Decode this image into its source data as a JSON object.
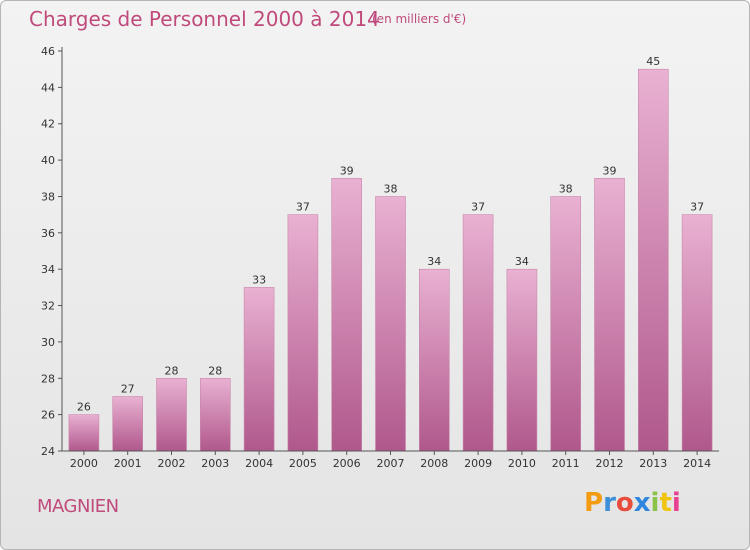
{
  "header": {
    "title": "Charges de Personnel 2000 à 2014",
    "subtitle": "(en milliers d'€)"
  },
  "footer": {
    "commune": "MAGNIEN",
    "brand": "Proxiti",
    "brand_letters": [
      "P",
      "r",
      "o",
      "x",
      "i",
      "t",
      "i"
    ],
    "brand_colors": [
      "#f39c12",
      "#3d8fd8",
      "#e74c3c",
      "#2e86de",
      "#8bc34a",
      "#f1c40f",
      "#e84393"
    ]
  },
  "colors": {
    "bar_light": "#e9b1d2",
    "bar_dark": "#b0588c",
    "accent": "#c04a7c"
  },
  "chart_data": {
    "type": "bar",
    "categories": [
      "2000",
      "2001",
      "2002",
      "2003",
      "2004",
      "2005",
      "2006",
      "2007",
      "2008",
      "2009",
      "2010",
      "2011",
      "2012",
      "2013",
      "2014"
    ],
    "values": [
      26,
      27,
      28,
      28,
      33,
      37,
      39,
      38,
      34,
      37,
      34,
      38,
      39,
      45,
      37
    ],
    "title": "Charges de Personnel 2000 à 2014",
    "xlabel": "",
    "ylabel": "",
    "ylim": [
      24,
      46
    ],
    "yticks": [
      24,
      26,
      28,
      30,
      32,
      34,
      36,
      38,
      40,
      42,
      44,
      46
    ],
    "grid": false,
    "legend": "none"
  }
}
